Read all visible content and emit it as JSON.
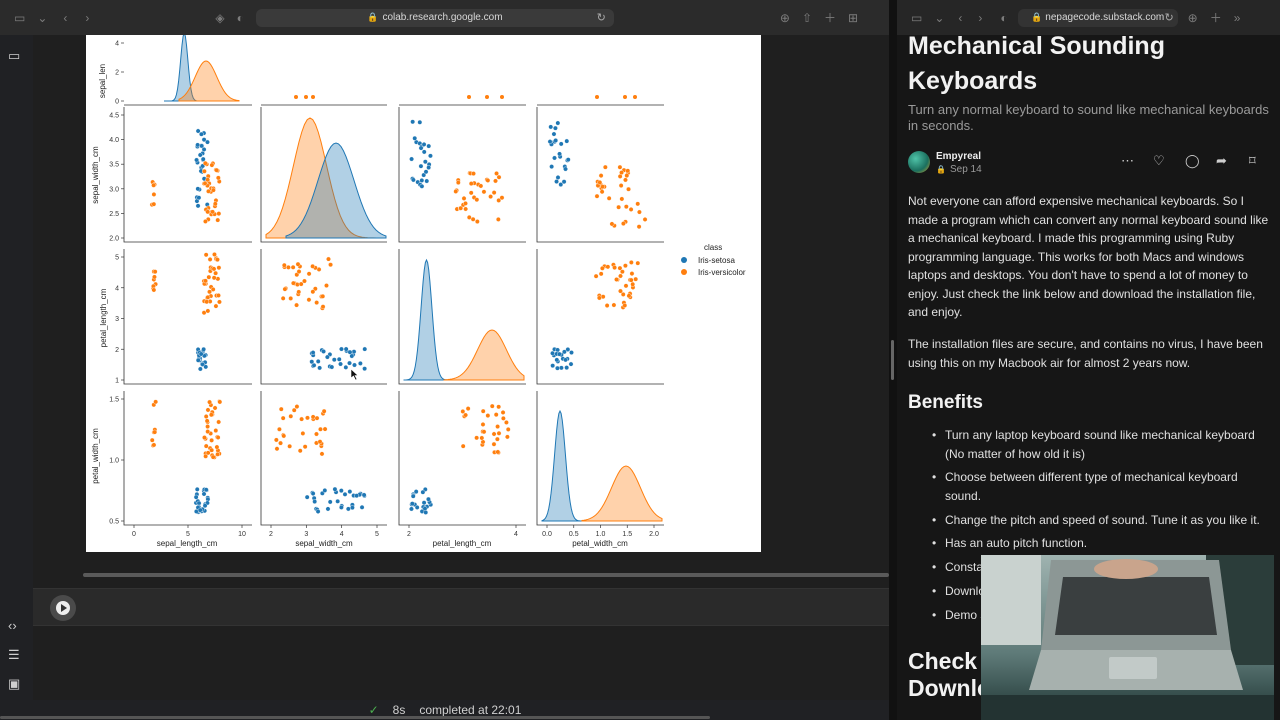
{
  "left_browser": {
    "url": "colab.research.google.com"
  },
  "right_browser": {
    "url": "nepagecode.substack.com"
  },
  "pairplot": {
    "x_labels": [
      "sepal_length_cm",
      "sepal_width_cm",
      "petal_length_cm",
      "petal_width_cm"
    ],
    "y_labels": [
      "sepal_len",
      "sepal_width_cm",
      "petal_length_cm",
      "petal_width_cm"
    ],
    "x_ticks": [
      [
        "0",
        "5",
        "10"
      ],
      [
        "2",
        "3",
        "4",
        "5"
      ],
      [
        "2",
        "4"
      ],
      [
        "0.0",
        "0.5",
        "1.0",
        "1.5",
        "2.0"
      ]
    ],
    "y_ticks": [
      [
        "0",
        "2",
        "4"
      ],
      [
        "2.0",
        "2.5",
        "3.0",
        "3.5",
        "4.0",
        "4.5"
      ],
      [
        "1",
        "2",
        "3",
        "4",
        "5"
      ],
      [
        "0.5",
        "1.0",
        "1.5"
      ]
    ],
    "legend": {
      "title": "class",
      "entries": [
        {
          "label": "Iris-setosa",
          "color": "#1f77b4"
        },
        {
          "label": "Iris-versicolor",
          "color": "#ff7f0e"
        }
      ]
    }
  },
  "status": {
    "check": "✓",
    "duration": "8s",
    "text": "completed at 22:01"
  },
  "article": {
    "title": "Mechanical Sounding Keyboards",
    "subtitle": "Turn any normal keyboard to sound like mechanical keyboards in seconds.",
    "author": "Empyreal",
    "date": "Sep 14",
    "paragraphs": [
      "Not everyone can afford expensive mechanical keyboards. So I made a program which can convert any normal keyboard sound like a mechanical keyboard. I made this programming using Ruby programming language. This works for both Macs and windows laptops and desktops. You don't have to spend a lot of money to enjoy. Just check the link below and download the installation file, and enjoy.",
      "The installation files are secure, and contains no virus, I have been using this on my Macbook air for almost 2 years now."
    ],
    "benefits_heading": "Benefits",
    "benefits": [
      "Turn any laptop keyboard sound like mechanical keyboard (No matter of how old it is)",
      "Choose between different type of mechanical keyboard sound.",
      "Change the pitch and speed of sound. Tune it as you like it.",
      "Has an auto pitch function.",
      "Consta",
      "Downlo",
      "Demo s"
    ],
    "check_heading": "Check\nDownlo"
  },
  "icons": {
    "sidebar": "sidebar-icon",
    "back": "chevron-left-icon",
    "forward": "chevron-right-icon",
    "shield": "shield-icon",
    "reload": "reload-icon",
    "more": "more-icon",
    "like": "heart-icon",
    "comment": "comment-icon",
    "share": "share-icon",
    "bookmark": "bookmark-icon"
  },
  "colors": {
    "setosa": "#1f77b4",
    "versicolor": "#ff7f0e",
    "page_bg": "#161616"
  }
}
